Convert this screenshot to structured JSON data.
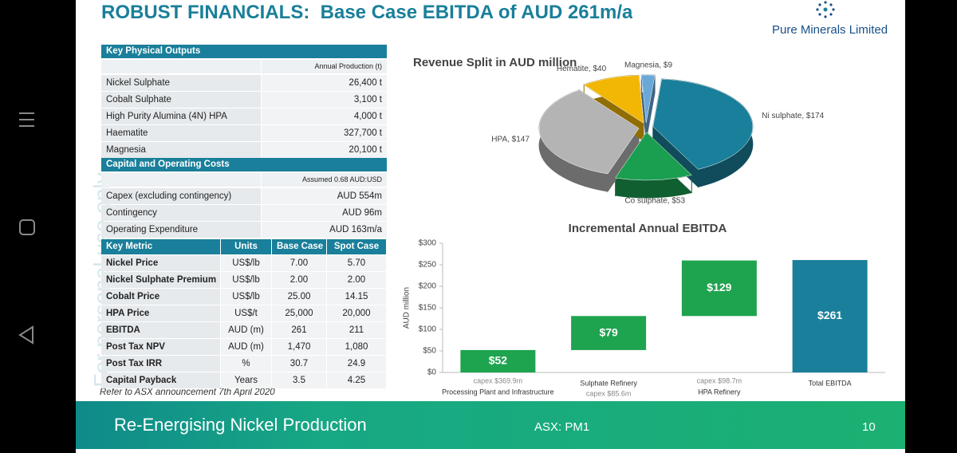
{
  "header": {
    "title": "ROBUST FINANCIALS:  Base Case EBITDA of AUD 261m/a",
    "logo": "Pure Minerals Limited"
  },
  "outputs": {
    "title": "Key Physical Outputs",
    "unit_note": "Annual Production (t)",
    "rows": [
      [
        "Nickel Sulphate",
        "26,400 t"
      ],
      [
        "Cobalt Sulphate",
        "3,100 t"
      ],
      [
        "High Purity Alumina (4N) HPA",
        "4,000 t"
      ],
      [
        "Haematite",
        "327,700 t"
      ],
      [
        "Magnesia",
        "20,100 t"
      ]
    ]
  },
  "costs": {
    "title": "Capital and Operating Costs",
    "unit_note": "Assumed 0.68 AUD:USD",
    "rows": [
      [
        "Capex (excluding contingency)",
        "AUD 554m"
      ],
      [
        "Contingency",
        "AUD 96m"
      ],
      [
        "Operating Expenditure",
        "AUD 163m/a"
      ]
    ]
  },
  "metrics": {
    "columns": [
      "Key Metric",
      "Units",
      "Base Case",
      "Spot Case"
    ],
    "rows": [
      [
        "Nickel Price",
        "US$/lb",
        "7.00",
        "5.70"
      ],
      [
        "Nickel Sulphate Premium",
        "US$/lb",
        "2.00",
        "2.00"
      ],
      [
        "Cobalt Price",
        "US$/lb",
        "25.00",
        "14.15"
      ],
      [
        "HPA Price",
        "US$/t",
        "25,000",
        "20,000"
      ],
      [
        "EBITDA",
        "AUD (m)",
        "261",
        "211"
      ],
      [
        "Post Tax NPV",
        "AUD (m)",
        "1,470",
        "1,080"
      ],
      [
        "Post Tax IRR",
        "%",
        "30.7",
        "24.9"
      ],
      [
        "Capital Payback",
        "Years",
        "3.5",
        "4.25"
      ]
    ]
  },
  "note": "Refer to ASX announcement 7th April 2020",
  "chart_data": [
    {
      "type": "pie",
      "title": "Revenue Split in AUD million",
      "labels": [
        "Ni sulphate, $174",
        "Co sulphate, $53",
        "HPA, $147",
        "Hematite, $40",
        "Magnesia, $9"
      ],
      "values": [
        174,
        53,
        147,
        40,
        9
      ],
      "colors": [
        "#1a7f9a",
        "#1a9e50",
        "#b4b4b4",
        "#f2b705",
        "#6aa8d8"
      ]
    },
    {
      "type": "waterfall",
      "title": "Incremental Annual EBITDA",
      "ylabel": "AUD million",
      "categories": [
        "Processing Plant and Infrastructure",
        "Sulphate Refinery",
        "HPA Refinery",
        "Total EBITDA"
      ],
      "values": [
        52,
        79,
        129,
        261
      ],
      "value_labels": [
        "$52",
        "$79",
        "$129",
        "$261"
      ],
      "is_total": [
        false,
        false,
        false,
        true
      ],
      "capex": [
        "capex $369.9m",
        "capex $85.6m",
        "capex $98.7m",
        null
      ],
      "colors": [
        "#1ea34f",
        "#1ea34f",
        "#1ea34f",
        "#1a7f9a"
      ],
      "ylim": [
        0,
        300
      ],
      "yticks": [
        {
          "value": 0,
          "label": "$0"
        },
        {
          "value": 50,
          "label": "$50"
        },
        {
          "value": 100,
          "label": "$100"
        },
        {
          "value": 150,
          "label": "$150"
        },
        {
          "value": 200,
          "label": "$200"
        },
        {
          "value": 250,
          "label": "$250"
        },
        {
          "value": 300,
          "label": "$300"
        }
      ]
    }
  ],
  "footer": {
    "tagline": "Re-Energising Nickel Production",
    "ticker": "ASX: PM1",
    "page": "10"
  },
  "watermark": "For personal use only"
}
